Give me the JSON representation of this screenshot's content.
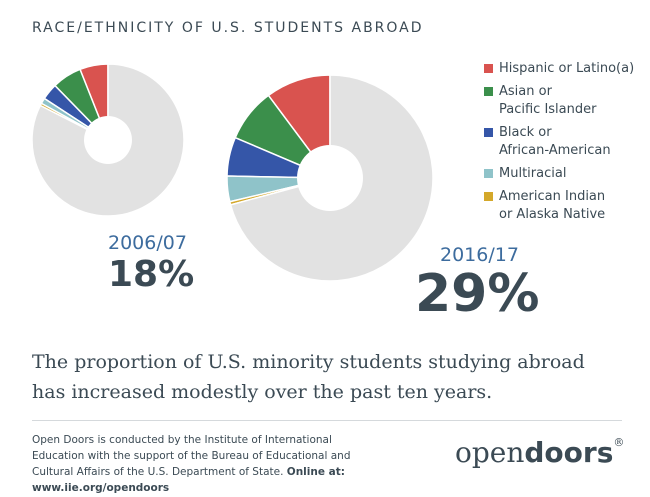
{
  "title": "RACE/ETHNICITY OF U.S. STUDENTS ABROAD",
  "legend": [
    {
      "label": "Hispanic or Latino(a)",
      "color": "#d9534f"
    },
    {
      "label": "Asian or\nPacific Islander",
      "color": "#3b8f4b"
    },
    {
      "label": "Black or\nAfrican-American",
      "color": "#3556a8"
    },
    {
      "label": "Multiracial",
      "color": "#8fc3c9"
    },
    {
      "label": "American Indian\nor Alaska Native",
      "color": "#d4a82a"
    }
  ],
  "chart_data": [
    {
      "type": "pie",
      "name": "2006/07",
      "total_minority": "18%",
      "remainder_color": "#e2e2e2",
      "slices": [
        {
          "category": "Hispanic or Latino(a)",
          "value": 6.0
        },
        {
          "category": "Asian or Pacific Islander",
          "value": 6.3
        },
        {
          "category": "Black or African-American",
          "value": 3.5
        },
        {
          "category": "Multiracial",
          "value": 1.2
        },
        {
          "category": "American Indian or Alaska Native",
          "value": 0.5
        },
        {
          "category": "Other",
          "value": 82.5
        }
      ]
    },
    {
      "type": "pie",
      "name": "2016/17",
      "total_minority": "29%",
      "remainder_color": "#e2e2e2",
      "slices": [
        {
          "category": "Hispanic or Latino(a)",
          "value": 10.2
        },
        {
          "category": "Asian or Pacific Islander",
          "value": 8.4
        },
        {
          "category": "Black or African-American",
          "value": 6.1
        },
        {
          "category": "Multiracial",
          "value": 4.0
        },
        {
          "category": "American Indian or Alaska Native",
          "value": 0.5
        },
        {
          "category": "Other",
          "value": 70.8
        }
      ]
    }
  ],
  "headline": "The proportion of U.S. minority students studying abroad has increased modestly over the past ten years.",
  "footer": {
    "text": "Open Doors is conducted by the Institute of International Education with the support of the Bureau of Educational and Cultural Affairs of the U.S. Department of State.",
    "online": "Online at: www.iie.org/opendoors"
  },
  "brand": {
    "open": "open",
    "doors": "doors",
    "mark": "®"
  }
}
